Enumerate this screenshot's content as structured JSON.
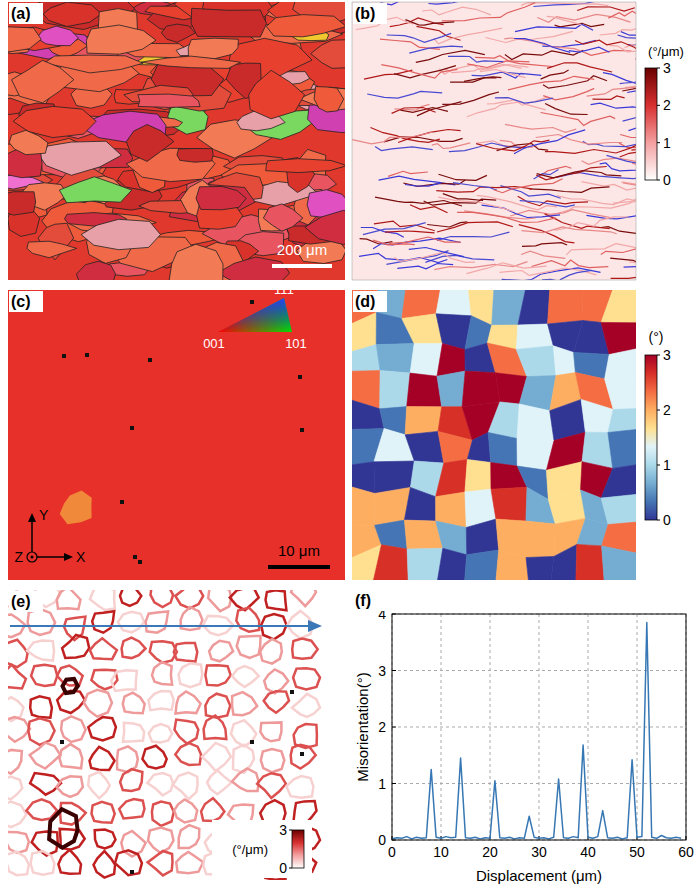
{
  "panels": [
    {
      "label": "(a)",
      "scale_bar": "200 μm"
    },
    {
      "label": "(b)",
      "colorbar": {
        "title": "(°/μm)",
        "range": [
          0,
          3
        ],
        "ticks": [
          0,
          1,
          2,
          3
        ]
      }
    },
    {
      "label": "(c)",
      "scale_bar": "10 μm",
      "ipf_key": {
        "top": "111",
        "left": "001",
        "right": "101"
      },
      "axes": {
        "vertical": "Y",
        "out": "Z",
        "horizontal": "X"
      }
    },
    {
      "label": "(d)",
      "colorbar": {
        "title": "(°)",
        "range": [
          0,
          3
        ],
        "ticks": [
          0,
          1,
          2,
          3
        ]
      }
    },
    {
      "label": "(e)",
      "colorbar": {
        "title": "(°/μm)",
        "range": [
          0,
          3
        ],
        "ticks": [
          0,
          3
        ]
      }
    },
    {
      "label": "(f)"
    }
  ],
  "chart_data": {
    "type": "line",
    "x_label": "Displacement (μm)",
    "y_label": "Misorientation(°)",
    "x": [
      0,
      1,
      2,
      3,
      4,
      5,
      6,
      7,
      8,
      9,
      10,
      11,
      12,
      13,
      14,
      15,
      16,
      17,
      18,
      19,
      20,
      21,
      22,
      23,
      24,
      25,
      26,
      27,
      28,
      29,
      30,
      31,
      32,
      33,
      34,
      35,
      36,
      37,
      38,
      39,
      40,
      41,
      42,
      43,
      44,
      45,
      46,
      47,
      48,
      49,
      50,
      51,
      52,
      53,
      54,
      55,
      56,
      57,
      58,
      59
    ],
    "values": [
      0.02,
      0.04,
      0.03,
      0.06,
      0.02,
      0.05,
      0.03,
      0.04,
      1.25,
      0.05,
      0.03,
      0.06,
      0.04,
      0.05,
      1.45,
      0.04,
      0.03,
      0.05,
      0.02,
      0.04,
      0.03,
      1.05,
      0.04,
      0.03,
      0.05,
      0.02,
      0.04,
      0.03,
      0.42,
      0.05,
      0.03,
      0.04,
      0.02,
      0.05,
      1.08,
      0.04,
      0.03,
      0.06,
      0.04,
      1.68,
      0.05,
      0.03,
      0.06,
      0.52,
      0.04,
      0.03,
      0.05,
      0.02,
      0.04,
      1.42,
      0.05,
      0.06,
      3.85,
      0.05,
      0.03,
      0.08,
      0.04,
      0.03,
      0.05,
      0.03
    ],
    "color": "#3778b4",
    "xlim": [
      0,
      60
    ],
    "xticks": [
      0,
      10,
      20,
      30,
      40,
      50,
      60
    ],
    "ylim": [
      0,
      4
    ],
    "yticks": [
      0,
      1,
      2,
      3,
      4
    ],
    "grid": true
  }
}
